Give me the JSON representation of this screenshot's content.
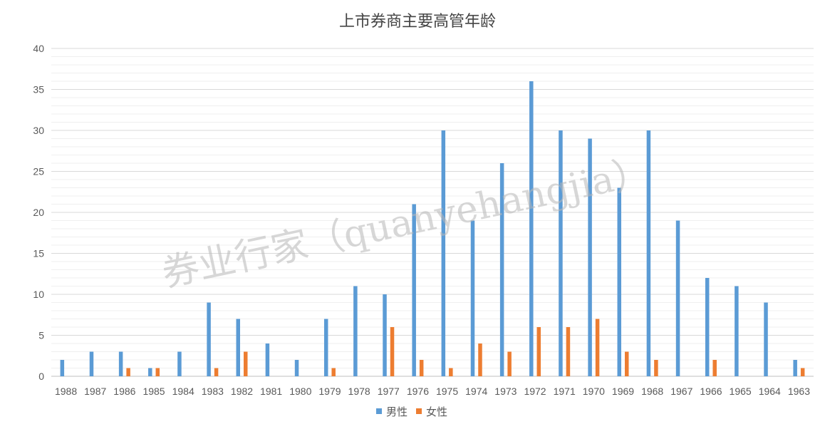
{
  "chart_data": {
    "type": "bar",
    "title": "上市券商主要高管年龄",
    "xlabel": "",
    "ylabel": "",
    "ylim": [
      0,
      40
    ],
    "yticks": [
      0,
      5,
      10,
      15,
      20,
      25,
      30,
      35,
      40
    ],
    "grid": true,
    "legend_position": "bottom",
    "categories": [
      "1988",
      "1987",
      "1986",
      "1985",
      "1984",
      "1983",
      "1982",
      "1981",
      "1980",
      "1979",
      "1978",
      "1977",
      "1976",
      "1975",
      "1974",
      "1973",
      "1972",
      "1971",
      "1970",
      "1969",
      "1968",
      "1967",
      "1966",
      "1965",
      "1964",
      "1963"
    ],
    "series": [
      {
        "name": "男性",
        "color": "#5B9BD5",
        "values": [
          2,
          3,
          3,
          1,
          3,
          9,
          7,
          4,
          2,
          7,
          11,
          10,
          21,
          30,
          19,
          26,
          36,
          30,
          29,
          23,
          30,
          19,
          12,
          11,
          9,
          2
        ]
      },
      {
        "name": "女性",
        "color": "#ED7D31",
        "values": [
          0,
          0,
          1,
          1,
          0,
          1,
          3,
          0,
          0,
          1,
          0,
          6,
          2,
          1,
          4,
          3,
          6,
          6,
          7,
          3,
          2,
          0,
          2,
          0,
          0,
          1
        ]
      }
    ],
    "watermark": "券业行家（quanyehangjia）"
  }
}
